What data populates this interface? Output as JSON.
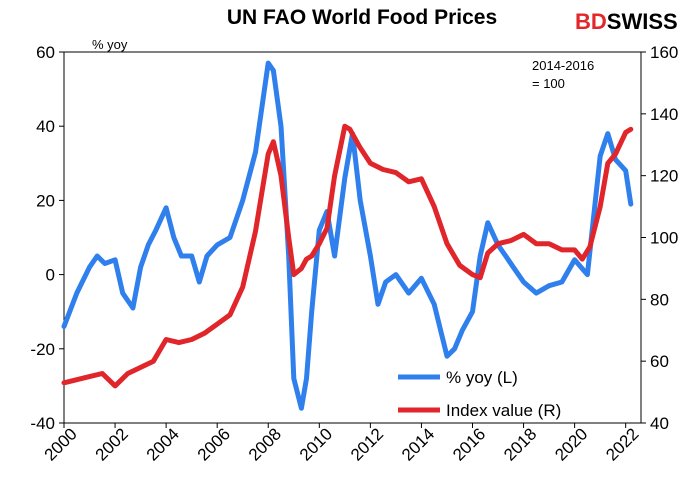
{
  "chart_data": {
    "type": "line",
    "title": "UN FAO World Food Prices",
    "brand": {
      "prefix": "BD",
      "suffix": "SWISS",
      "prefix_color": "#e3262a",
      "suffix_color": "#000000"
    },
    "left_axis": {
      "label": "% yoy",
      "ylim": [
        -40,
        60
      ],
      "ticks": [
        "60",
        "40",
        "20",
        "0",
        "-20",
        "-40"
      ]
    },
    "right_axis": {
      "label_line1": "2014-2016",
      "label_line2": "= 100",
      "ylim": [
        40,
        160
      ],
      "ticks": [
        "160",
        "140",
        "120",
        "100",
        "80",
        "60",
        "40"
      ]
    },
    "x_axis": {
      "xlim": [
        2000,
        2022.6
      ],
      "ticks": [
        "2000",
        "2002",
        "2004",
        "2006",
        "2008",
        "2010",
        "2012",
        "2014",
        "2016",
        "2018",
        "2020",
        "2022"
      ]
    },
    "colors": {
      "yoy": "#2f80ed",
      "index": "#e0252b"
    },
    "series": [
      {
        "name": "% yoy (L)",
        "axis": "left",
        "x": [
          2000.0,
          2000.5,
          2001.0,
          2001.3,
          2001.6,
          2002.0,
          2002.3,
          2002.7,
          2003.0,
          2003.3,
          2003.6,
          2004.0,
          2004.3,
          2004.6,
          2005.0,
          2005.3,
          2005.6,
          2006.0,
          2006.5,
          2007.0,
          2007.5,
          2008.0,
          2008.2,
          2008.5,
          2008.8,
          2009.0,
          2009.3,
          2009.5,
          2009.7,
          2010.0,
          2010.3,
          2010.6,
          2011.0,
          2011.3,
          2011.6,
          2012.0,
          2012.3,
          2012.6,
          2013.0,
          2013.5,
          2014.0,
          2014.5,
          2015.0,
          2015.3,
          2015.6,
          2016.0,
          2016.3,
          2016.6,
          2017.0,
          2017.3,
          2017.6,
          2018.0,
          2018.5,
          2019.0,
          2019.5,
          2020.0,
          2020.5,
          2021.0,
          2021.3,
          2021.6,
          2022.0,
          2022.2
        ],
        "values": [
          -14,
          -5,
          2,
          5,
          3,
          4,
          -5,
          -9,
          2,
          8,
          12,
          18,
          10,
          5,
          5,
          -2,
          5,
          8,
          10,
          20,
          33,
          57,
          55,
          40,
          5,
          -28,
          -36,
          -28,
          -10,
          12,
          17,
          5,
          26,
          38,
          20,
          5,
          -8,
          -2,
          0,
          -5,
          -1,
          -8,
          -22,
          -20,
          -15,
          -10,
          5,
          14,
          8,
          5,
          2,
          -2,
          -5,
          -3,
          -2,
          4,
          0,
          32,
          38,
          31,
          28,
          19
        ]
      },
      {
        "name": "Index value (R)",
        "axis": "right",
        "x": [
          2000.0,
          2000.5,
          2001.0,
          2001.5,
          2002.0,
          2002.5,
          2003.0,
          2003.5,
          2004.0,
          2004.5,
          2005.0,
          2005.5,
          2006.0,
          2006.5,
          2007.0,
          2007.5,
          2008.0,
          2008.2,
          2008.5,
          2008.8,
          2009.0,
          2009.3,
          2009.5,
          2009.7,
          2010.0,
          2010.3,
          2010.6,
          2011.0,
          2011.2,
          2011.6,
          2012.0,
          2012.5,
          2013.0,
          2013.5,
          2014.0,
          2014.5,
          2015.0,
          2015.5,
          2016.0,
          2016.3,
          2016.6,
          2017.0,
          2017.5,
          2018.0,
          2018.5,
          2019.0,
          2019.5,
          2020.0,
          2020.3,
          2020.6,
          2021.0,
          2021.3,
          2021.6,
          2022.0,
          2022.2
        ],
        "values": [
          53,
          54,
          55,
          56,
          52,
          56,
          58,
          60,
          67,
          66,
          67,
          69,
          72,
          75,
          84,
          102,
          127,
          131,
          120,
          100,
          88,
          90,
          93,
          94,
          98,
          103,
          120,
          136,
          135,
          129,
          124,
          122,
          121,
          118,
          119,
          110,
          98,
          91,
          88,
          87,
          95,
          98,
          99,
          101,
          98,
          98,
          96,
          96,
          93,
          97,
          110,
          124,
          127,
          134,
          135
        ]
      }
    ]
  }
}
